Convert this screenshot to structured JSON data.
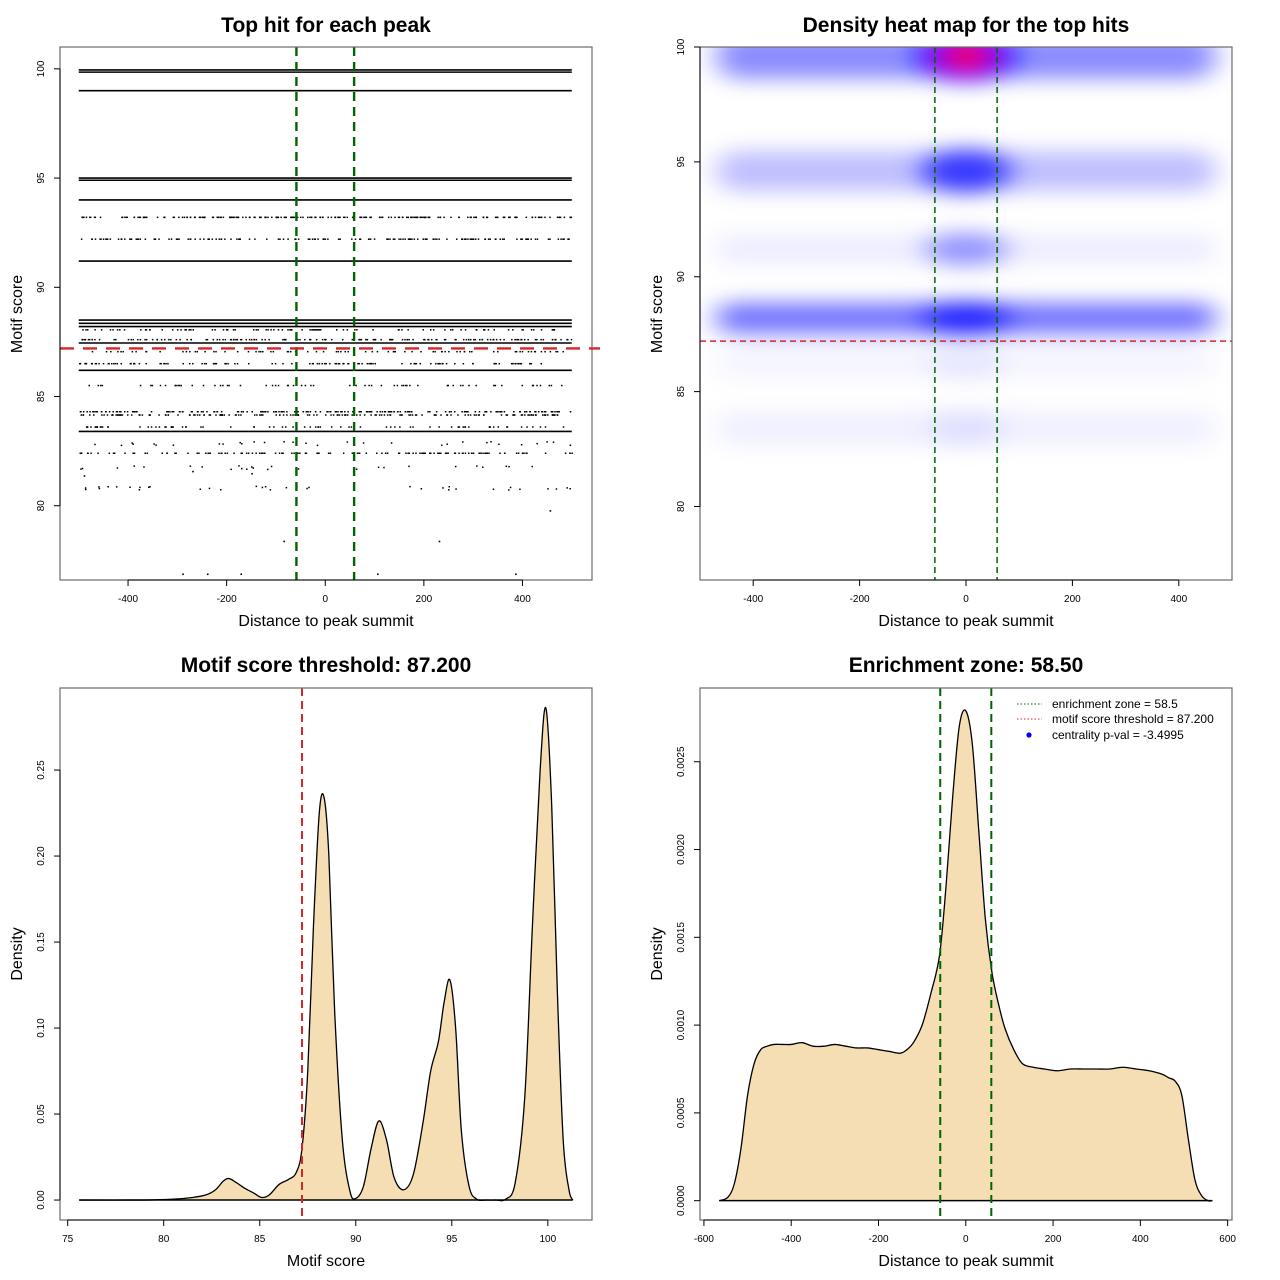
{
  "chart_data": [
    {
      "id": "top_hits",
      "type": "scatter",
      "title": "Top hit for each peak",
      "xlabel": "Distance to peak summit",
      "ylabel": "Motif score",
      "xlim": [
        -538,
        541
      ],
      "ylim": [
        76.6,
        101
      ],
      "xticks": [
        -400,
        -200,
        0,
        200,
        400
      ],
      "yticks": [
        80,
        85,
        90,
        95,
        100
      ],
      "grid": false,
      "vlines": {
        "values": [
          -58.5,
          58.5
        ],
        "color": "#006400",
        "style": "dashed",
        "label": "enrichment zone"
      },
      "hline": {
        "value": 87.2,
        "color": "#d62728",
        "style": "dashed",
        "label": "motif score threshold"
      },
      "x_range_of_hits": [
        -500,
        500
      ],
      "score_rows": [
        {
          "score": 99.95,
          "density": 1.0
        },
        {
          "score": 99.85,
          "density": 1.0
        },
        {
          "score": 99.0,
          "density": 1.0
        },
        {
          "score": 95.0,
          "density": 1.0
        },
        {
          "score": 94.9,
          "density": 1.0
        },
        {
          "score": 94.0,
          "density": 1.0
        },
        {
          "score": 93.2,
          "density": 0.85
        },
        {
          "score": 92.2,
          "density": 0.6
        },
        {
          "score": 91.2,
          "density": 1.0
        },
        {
          "score": 88.5,
          "density": 1.0
        },
        {
          "score": 88.35,
          "density": 1.0
        },
        {
          "score": 88.2,
          "density": 0.95
        },
        {
          "score": 88.05,
          "density": 0.35
        },
        {
          "score": 87.6,
          "density": 0.55
        },
        {
          "score": 87.45,
          "density": 1.0
        },
        {
          "score": 87.05,
          "density": 0.3
        },
        {
          "score": 86.5,
          "density": 0.45
        },
        {
          "score": 86.2,
          "density": 0.95
        },
        {
          "score": 85.5,
          "density": 0.25
        },
        {
          "score": 84.3,
          "density": 0.7
        },
        {
          "score": 84.15,
          "density": 0.6
        },
        {
          "score": 83.6,
          "density": 0.3
        },
        {
          "score": 83.4,
          "density": 1.0
        },
        {
          "score": 82.85,
          "density": 0.12
        },
        {
          "score": 82.4,
          "density": 0.5
        },
        {
          "score": 81.75,
          "density": 0.1
        },
        {
          "score": 80.8,
          "density": 0.14
        }
      ],
      "sparse_points": [
        {
          "x": -490,
          "y": 81.4
        },
        {
          "x": -270,
          "y": 81.6
        },
        {
          "x": -150,
          "y": 81.5
        },
        {
          "x": 455,
          "y": 79.8
        },
        {
          "x": -85,
          "y": 78.4
        },
        {
          "x": 230,
          "y": 78.4
        },
        {
          "x": -290,
          "y": 76.9
        },
        {
          "x": -240,
          "y": 76.9
        },
        {
          "x": -172,
          "y": 76.9
        },
        {
          "x": 105,
          "y": 76.9
        },
        {
          "x": 385,
          "y": 76.9
        }
      ]
    },
    {
      "id": "heatmap",
      "type": "heatmap",
      "title": "Density heat map for the top hits",
      "xlabel": "Distance to peak summit",
      "ylabel": "Motif score",
      "xlim": [
        -500,
        500
      ],
      "ylim": [
        76.8,
        100
      ],
      "xticks": [
        -400,
        -200,
        0,
        200,
        400
      ],
      "yticks": [
        80,
        85,
        90,
        95,
        100
      ],
      "colormap": [
        "#ffffff",
        "#0000ff",
        "#ff0000"
      ],
      "vlines": {
        "values": [
          -58.5,
          58.5
        ],
        "color": "#006400",
        "style": "dashed"
      },
      "hline": {
        "value": 87.2,
        "color": "#d62728",
        "style": "dashed"
      },
      "bands": [
        {
          "score": 99.6,
          "band_intensity": 0.45,
          "center_intensity": 1.9,
          "sigma_score": 0.9
        },
        {
          "score": 94.6,
          "band_intensity": 0.25,
          "center_intensity": 0.7,
          "sigma_score": 0.8
        },
        {
          "score": 91.2,
          "band_intensity": 0.07,
          "center_intensity": 0.38,
          "sigma_score": 0.6
        },
        {
          "score": 88.2,
          "band_intensity": 0.55,
          "center_intensity": 0.72,
          "sigma_score": 0.6
        },
        {
          "score": 86.3,
          "band_intensity": 0.04,
          "center_intensity": 0.06,
          "sigma_score": 0.7
        },
        {
          "score": 83.4,
          "band_intensity": 0.06,
          "center_intensity": 0.07,
          "sigma_score": 0.7
        }
      ]
    },
    {
      "id": "score_density",
      "type": "area",
      "title": "Motif score threshold: 87.200",
      "xlabel": "Motif score",
      "ylabel": "Density",
      "xlim": [
        74.6,
        102.3
      ],
      "ylim": [
        -0.0116,
        0.2977
      ],
      "xticks": [
        75,
        80,
        85,
        90,
        95,
        100
      ],
      "yticks": [
        0.0,
        0.05,
        0.1,
        0.15,
        0.2,
        0.25
      ],
      "ytick_labels": [
        "0.00",
        "0.05",
        "0.10",
        "0.15",
        "0.20",
        "0.25"
      ],
      "fill": "#f5deb3",
      "vline": {
        "value": 87.2,
        "color": "#d62728",
        "style": "dashed"
      },
      "x": [
        75.6,
        79.0,
        80.5,
        81.5,
        82.2,
        82.7,
        83.1,
        83.4,
        83.8,
        84.2,
        84.7,
        85.1,
        85.5,
        86.0,
        86.5,
        86.9,
        87.2,
        87.5,
        87.8,
        88.1,
        88.35,
        88.6,
        88.9,
        89.3,
        89.7,
        90.0,
        90.4,
        90.8,
        91.2,
        91.6,
        92.0,
        92.5,
        93.0,
        93.5,
        93.9,
        94.3,
        94.6,
        94.9,
        95.2,
        95.5,
        95.9,
        96.3,
        96.8,
        97.3,
        97.8,
        98.3,
        98.8,
        99.2,
        99.6,
        99.9,
        100.2,
        100.5,
        100.8,
        101.1,
        101.3
      ],
      "y": [
        0.0,
        0.0,
        0.0005,
        0.0015,
        0.003,
        0.006,
        0.011,
        0.0125,
        0.01,
        0.007,
        0.004,
        0.0015,
        0.003,
        0.009,
        0.012,
        0.016,
        0.03,
        0.075,
        0.16,
        0.225,
        0.234,
        0.2,
        0.11,
        0.035,
        0.005,
        0.001,
        0.008,
        0.03,
        0.046,
        0.035,
        0.013,
        0.006,
        0.015,
        0.045,
        0.075,
        0.092,
        0.115,
        0.128,
        0.1,
        0.04,
        0.008,
        0.0005,
        0.0,
        0.0,
        0.0005,
        0.01,
        0.06,
        0.16,
        0.25,
        0.286,
        0.23,
        0.12,
        0.035,
        0.006,
        0.0
      ],
      "peaks": [
        {
          "x": 83.4,
          "density": 0.0125
        },
        {
          "x": 88.35,
          "density": 0.234
        },
        {
          "x": 91.2,
          "density": 0.046
        },
        {
          "x": 94.9,
          "density": 0.128
        },
        {
          "x": 99.9,
          "density": 0.286
        }
      ]
    },
    {
      "id": "position_density",
      "type": "area",
      "title": "Enrichment zone: 58.50",
      "xlabel": "Distance to peak summit",
      "ylabel": "Density",
      "xlim": [
        -609,
        610
      ],
      "ylim": [
        -0.00011,
        0.00292
      ],
      "xticks": [
        -600,
        -400,
        -200,
        0,
        200,
        400,
        600
      ],
      "yticks": [
        0.0,
        0.0005,
        0.001,
        0.0015,
        0.002,
        0.0025
      ],
      "ytick_labels": [
        "0.0000",
        "0.0005",
        "0.0010",
        "0.0015",
        "0.0020",
        "0.0025"
      ],
      "fill": "#f5deb3",
      "vlines": {
        "values": [
          -58.5,
          58.5
        ],
        "color": "#006400",
        "style": "dashed"
      },
      "x": [
        -565,
        -545,
        -530,
        -515,
        -500,
        -485,
        -470,
        -455,
        -440,
        -420,
        -400,
        -375,
        -350,
        -325,
        -300,
        -275,
        -250,
        -225,
        -200,
        -175,
        -150,
        -135,
        -120,
        -100,
        -80,
        -60,
        -45,
        -30,
        -15,
        0,
        15,
        30,
        45,
        60,
        75,
        90,
        110,
        130,
        155,
        180,
        210,
        240,
        270,
        300,
        330,
        360,
        390,
        420,
        450,
        465,
        480,
        495,
        510,
        525,
        540,
        555,
        565
      ],
      "y": [
        0.0,
        2e-05,
        0.0001,
        0.0003,
        0.0006,
        0.00078,
        0.00086,
        0.00088,
        0.00089,
        0.00089,
        0.00089,
        0.0009,
        0.00088,
        0.00088,
        0.00089,
        0.00088,
        0.00087,
        0.00087,
        0.00086,
        0.00085,
        0.00084,
        0.00086,
        0.0009,
        0.001,
        0.00118,
        0.0014,
        0.0018,
        0.0023,
        0.0027,
        0.00279,
        0.0026,
        0.0021,
        0.0016,
        0.0013,
        0.00112,
        0.00098,
        0.00086,
        0.00078,
        0.00076,
        0.00075,
        0.00074,
        0.00075,
        0.00075,
        0.00075,
        0.00075,
        0.00076,
        0.00075,
        0.00074,
        0.00072,
        0.0007,
        0.00068,
        0.0006,
        0.00035,
        0.00012,
        3e-05,
        0.0,
        0.0
      ],
      "legend": {
        "placement": "top-right",
        "entries": [
          {
            "label": "enrichment zone = 58.5",
            "type": "dotted-line",
            "color": "#006400"
          },
          {
            "label": "motif score threshold = 87.200",
            "type": "dotted-line",
            "color": "#d62728"
          },
          {
            "label": "centrality p-val = -3.4995",
            "type": "point",
            "color": "#0000ff"
          }
        ]
      }
    }
  ]
}
